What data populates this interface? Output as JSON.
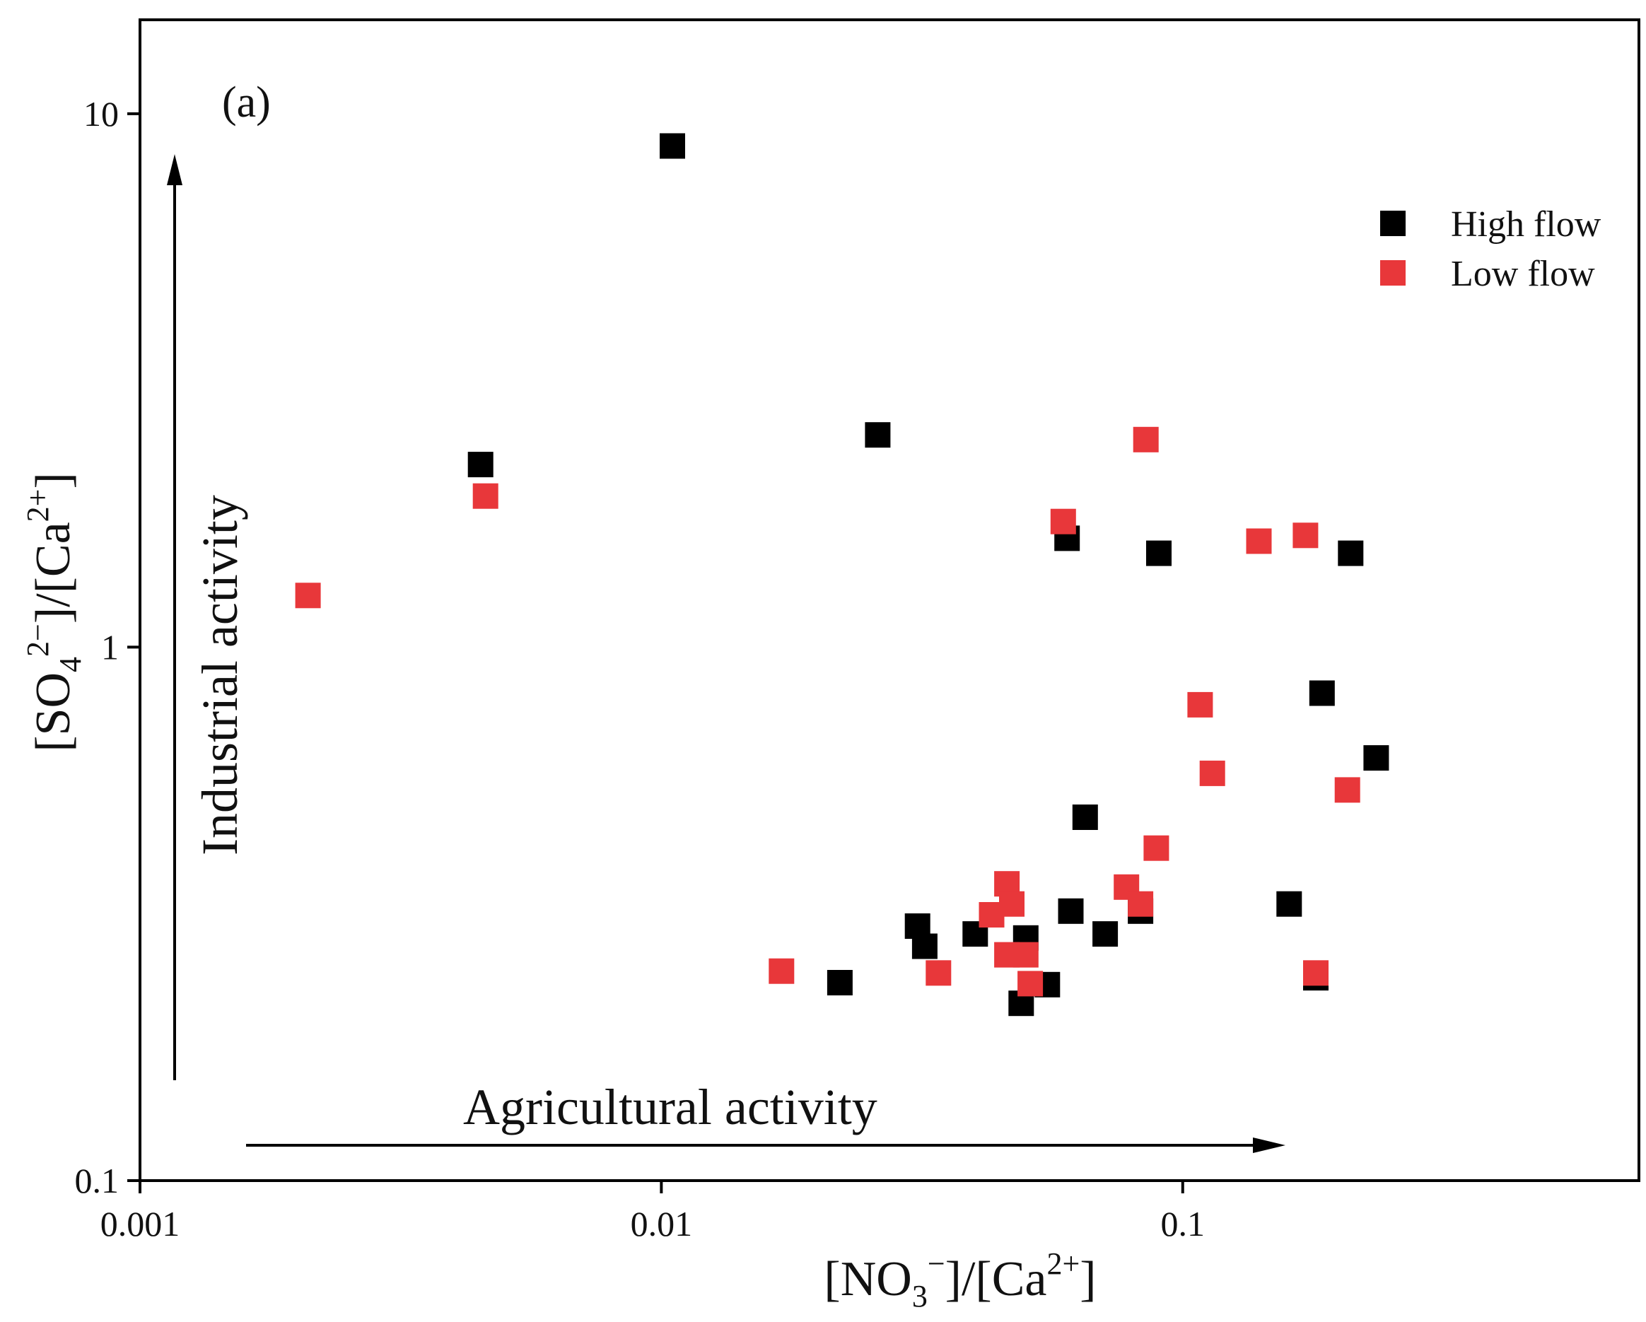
{
  "chart_data": {
    "type": "scatter",
    "panel_label": "(a)",
    "xscale": "log",
    "yscale": "log",
    "xlim": [
      0.001,
      0.75
    ],
    "ylim": [
      0.1,
      15
    ],
    "xticks": [
      0.001,
      0.01,
      0.1
    ],
    "xtick_labels": [
      "0.001",
      "0.01",
      "0.1"
    ],
    "yticks": [
      0.1,
      1,
      10
    ],
    "ytick_labels": [
      "0.1",
      "1",
      "10"
    ],
    "xlabel": {
      "pre": "[NO",
      "sub": "3",
      "sup": "−",
      "mid": "]/[Ca",
      "sup2": "2+",
      "post": "]"
    },
    "ylabel": {
      "pre": "[SO",
      "sub": "4",
      "sup": "2−",
      "mid": "]/[Ca",
      "sup2": "2+",
      "post": "]"
    },
    "annotations": {
      "x_arrow": "Agricultural activity",
      "y_arrow": "Industrial activity"
    },
    "legend_position": "top-right",
    "series": [
      {
        "name": "High flow",
        "color": "#000000",
        "points": [
          [
            0.0105,
            8.7
          ],
          [
            0.0045,
            2.2
          ],
          [
            0.026,
            2.5
          ],
          [
            0.06,
            1.6
          ],
          [
            0.09,
            1.5
          ],
          [
            0.21,
            1.5
          ],
          [
            0.185,
            0.82
          ],
          [
            0.235,
            0.62
          ],
          [
            0.065,
            0.48
          ],
          [
            0.16,
            0.33
          ],
          [
            0.061,
            0.32
          ],
          [
            0.083,
            0.32
          ],
          [
            0.031,
            0.3
          ],
          [
            0.04,
            0.29
          ],
          [
            0.071,
            0.29
          ],
          [
            0.05,
            0.285
          ],
          [
            0.032,
            0.275
          ],
          [
            0.022,
            0.235
          ],
          [
            0.055,
            0.233
          ],
          [
            0.049,
            0.215
          ],
          [
            0.18,
            0.24
          ]
        ]
      },
      {
        "name": "Low flow",
        "color": "#e8373a",
        "points": [
          [
            0.0021,
            1.25
          ],
          [
            0.0046,
            1.92
          ],
          [
            0.085,
            2.45
          ],
          [
            0.059,
            1.72
          ],
          [
            0.14,
            1.58
          ],
          [
            0.172,
            1.62
          ],
          [
            0.108,
            0.78
          ],
          [
            0.114,
            0.58
          ],
          [
            0.207,
            0.54
          ],
          [
            0.089,
            0.42
          ],
          [
            0.046,
            0.36
          ],
          [
            0.078,
            0.355
          ],
          [
            0.083,
            0.33
          ],
          [
            0.047,
            0.33
          ],
          [
            0.043,
            0.315
          ],
          [
            0.046,
            0.265
          ],
          [
            0.05,
            0.265
          ],
          [
            0.017,
            0.247
          ],
          [
            0.034,
            0.245
          ],
          [
            0.051,
            0.234
          ],
          [
            0.18,
            0.245
          ]
        ]
      }
    ]
  }
}
